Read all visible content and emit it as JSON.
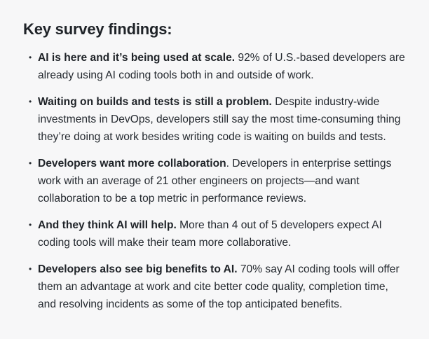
{
  "heading": "Key survey findings:",
  "findings": [
    {
      "lead": "AI is here and it’s being used at scale.",
      "text": " 92% of U.S.-based developers are already using AI coding tools both in and outside of work."
    },
    {
      "lead": "Waiting on builds and tests is still a problem.",
      "text": " Despite industry-wide investments in DevOps, developers still say the most time-consuming thing they’re doing at work besides writing code is waiting on builds and tests."
    },
    {
      "lead": "Developers want more collaboration",
      "text": ". Developers in enterprise settings work with an average of 21 other engineers on projects—and want collaboration to be a top metric in performance reviews."
    },
    {
      "lead": "And they think AI will help.",
      "text": " More than 4 out of 5 developers expect AI coding tools will make their team more collaborative."
    },
    {
      "lead": "Developers also see big benefits to AI.",
      "text": " 70% say AI coding tools will offer them an advantage at work and cite better code quality, completion time, and resolving incidents as some of the top anticipated benefits."
    }
  ],
  "colors": {
    "background": "#f7f7f8",
    "text": "#24292f",
    "heading": "#1f2328"
  }
}
